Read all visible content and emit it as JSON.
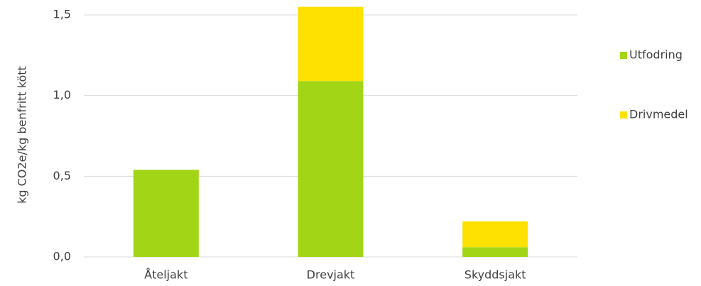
{
  "chart_data": {
    "type": "stacked_bar",
    "y_label": "kg CO2e/kg benfritt kött",
    "categories": [
      "Åteljakt",
      "Drevjakt",
      "Skyddsjakt"
    ],
    "series": [
      {
        "name": "Utfodring",
        "color": "#a2d516",
        "values": [
          0.54,
          1.09,
          0.06
        ]
      },
      {
        "name": "Drivmedel",
        "color": "#ffe100",
        "values": [
          0,
          0.46,
          0.16
        ]
      }
    ],
    "ylim": [
      0,
      1.5
    ],
    "yticks": [
      {
        "value": 0,
        "label": "0,0"
      },
      {
        "value": 0.5,
        "label": "0,5"
      },
      {
        "value": 1,
        "label": "1,0"
      },
      {
        "value": 1.5,
        "label": "1,5"
      }
    ],
    "grid": true,
    "legend": "right"
  }
}
